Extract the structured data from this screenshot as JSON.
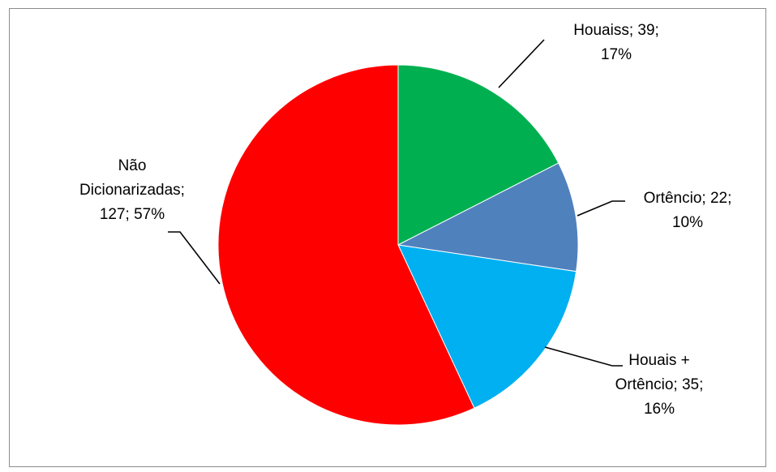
{
  "chart_data": {
    "type": "pie",
    "title": "",
    "slices": [
      {
        "name": "Houaiss",
        "value": 39,
        "percent": "17%",
        "color": "#00b050",
        "label_lines": [
          "Houaiss; 39;",
          "17%"
        ]
      },
      {
        "name": "Ortêncio",
        "value": 22,
        "percent": "10%",
        "color": "#4f81bd",
        "label_lines": [
          "Ortêncio; 22;",
          "10%"
        ]
      },
      {
        "name": "Houais + Ortêncio",
        "value": 35,
        "percent": "16%",
        "color": "#00b0f0",
        "label_lines": [
          "Houais +",
          "Ortêncio; 35;",
          "16%"
        ]
      },
      {
        "name": "Não Dicionarizadas",
        "value": 127,
        "percent": "57%",
        "color": "#ff0000",
        "label_lines": [
          "Não",
          "Dicionarizadas;",
          "127; 57%"
        ]
      }
    ],
    "start_angle_deg": 0,
    "direction": "clockwise",
    "legend": "none"
  }
}
